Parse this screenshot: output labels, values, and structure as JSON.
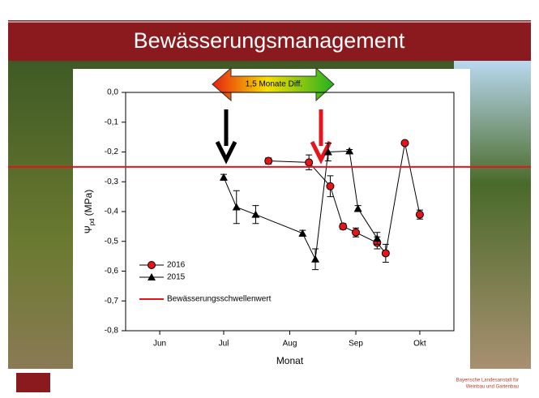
{
  "slide": {
    "title": "Bewässerungsmanagement",
    "footer": [
      "Bayerische Landesanstalt für",
      "Weinbau und Gartenbau"
    ]
  },
  "chart_data": {
    "type": "line",
    "xlabel": "Monat",
    "ylabel": [
      "Ψ",
      "pd",
      "(MPa)"
    ],
    "annotation": "1,5 Monate Diff.",
    "xlim": [
      136,
      290
    ],
    "xticks": [
      {
        "value": 152,
        "label": "Jun"
      },
      {
        "value": 182,
        "label": "Jul"
      },
      {
        "value": 213,
        "label": "Aug"
      },
      {
        "value": 244,
        "label": "Sep"
      },
      {
        "value": 274,
        "label": "Okt"
      }
    ],
    "ylim": [
      -0.8,
      0
    ],
    "yticks": [
      {
        "value": 0,
        "label": "0,0"
      },
      {
        "value": -0.1,
        "label": "-0,1"
      },
      {
        "value": -0.2,
        "label": "-0,2"
      },
      {
        "value": -0.3,
        "label": "-0,3"
      },
      {
        "value": -0.4,
        "label": "-0,4"
      },
      {
        "value": -0.5,
        "label": "-0,5"
      },
      {
        "value": -0.6,
        "label": "-0,6"
      },
      {
        "value": -0.7,
        "label": "-0,7"
      },
      {
        "value": -0.8,
        "label": "-0,8"
      }
    ],
    "series": [
      {
        "name": "2016",
        "marker": "circle",
        "color": "#e8141b",
        "x": [
          203,
          222,
          232,
          238,
          244,
          254,
          258,
          267,
          274
        ],
        "values": [
          -0.23,
          -0.235,
          -0.315,
          -0.45,
          -0.47,
          -0.505,
          -0.54,
          -0.17,
          -0.41
        ],
        "errors": [
          0.01,
          0.025,
          0.035,
          0.01,
          0.015,
          0.02,
          0.03,
          0.005,
          0.015
        ]
      },
      {
        "name": "2015",
        "marker": "triangle",
        "color": "#000000",
        "x": [
          182,
          188,
          197,
          219,
          225,
          231,
          241,
          245,
          254
        ],
        "values": [
          -0.285,
          -0.385,
          -0.41,
          -0.473,
          -0.56,
          -0.2,
          -0.197,
          -0.39,
          -0.49
        ],
        "errors": [
          0.01,
          0.055,
          0.03,
          0.01,
          0.035,
          0.03,
          0.005,
          0.01,
          0.02
        ]
      }
    ],
    "hline": {
      "name": "Bewässerungsschwellenwert",
      "value": -0.25,
      "color": "#e8141b"
    }
  }
}
